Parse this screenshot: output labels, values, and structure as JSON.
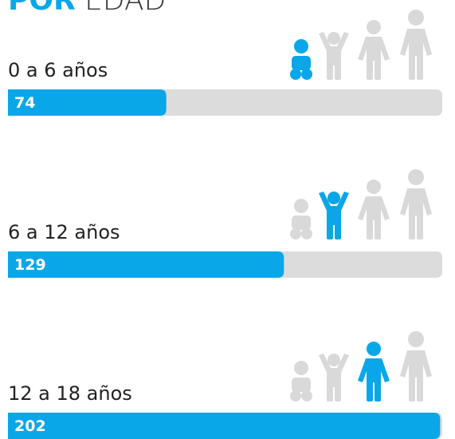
{
  "chart_data": {
    "type": "barh",
    "title": {
      "bold": "POR",
      "light": "EDAD"
    },
    "categories": [
      "0 a 6 años",
      "6 a 12 años",
      "12 a 18 años"
    ],
    "values": [
      74,
      129,
      202
    ],
    "color": "#0aa7e8",
    "track_color": "#dcdcdd",
    "xlim": [
      0,
      203
    ]
  }
}
